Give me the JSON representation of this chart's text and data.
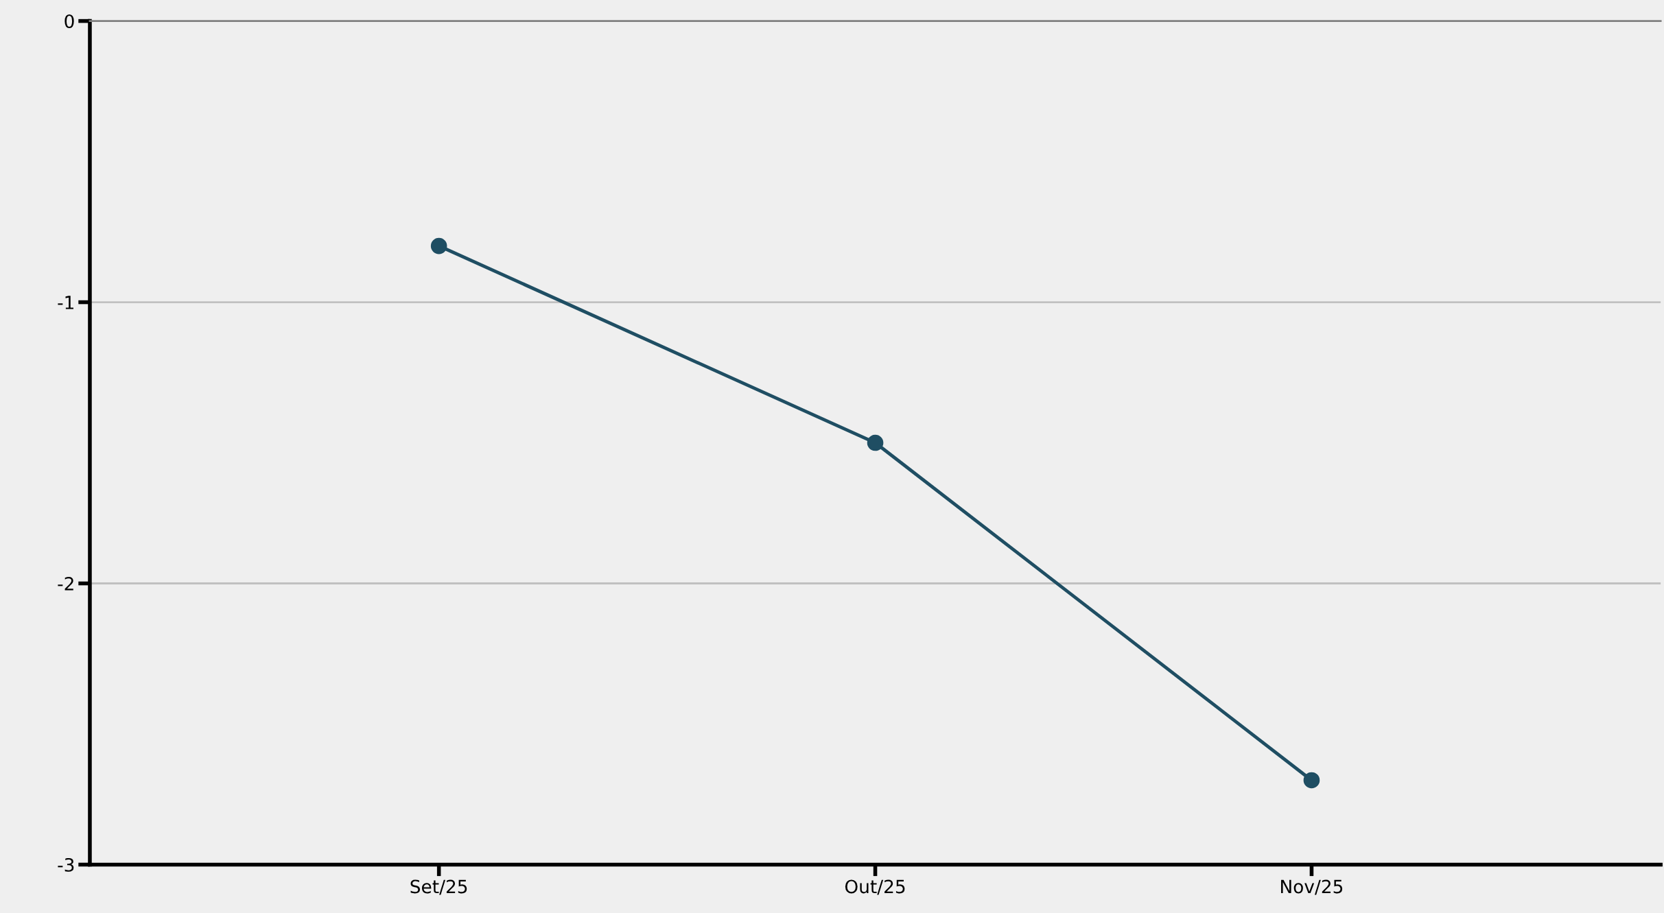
{
  "chart_data": {
    "type": "line",
    "categories": [
      "Set/25",
      "Out/25",
      "Nov/25"
    ],
    "series": [
      {
        "color": "#1f4e63",
        "values": [
          -0.8,
          -1.5,
          -2.7
        ]
      }
    ],
    "ylim": [
      -3,
      0
    ],
    "yticks": [
      -3,
      -2,
      -1,
      0
    ],
    "grid": "y",
    "marker": "circle",
    "line_style": "solid",
    "legend": false
  }
}
